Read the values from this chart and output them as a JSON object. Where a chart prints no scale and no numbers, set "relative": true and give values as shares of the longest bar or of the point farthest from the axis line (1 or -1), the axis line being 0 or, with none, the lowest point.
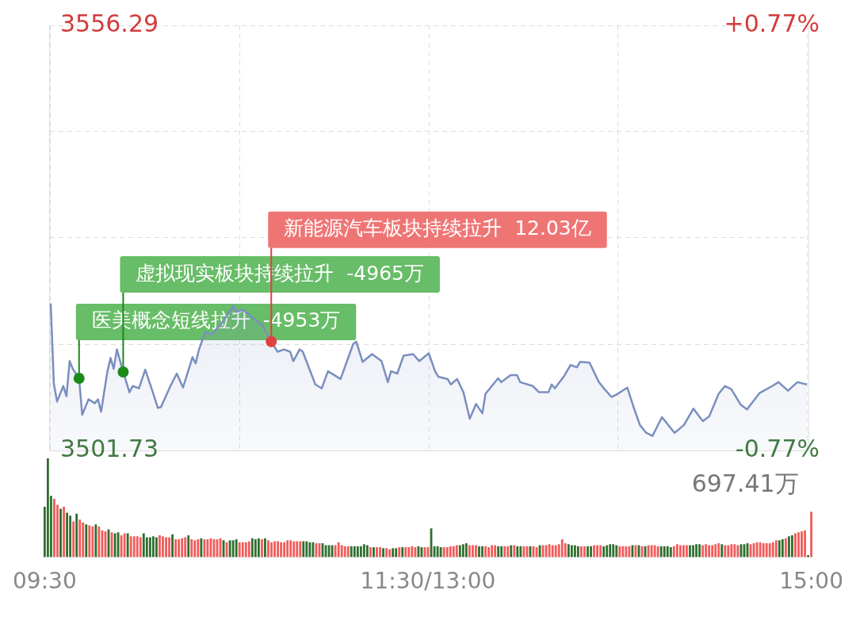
{
  "chart_data": [
    {
      "type": "area",
      "ylim": [
        3501.73,
        3556.29
      ],
      "y2lim": [
        -0.77,
        0.77
      ],
      "grid": true,
      "legend": false,
      "tick_labels": "y",
      "marker": "none",
      "yticks": [
        3556.29,
        {
          "value": 3542.65,
          "label": null
        },
        {
          "value": 3529.01,
          "label": null
        },
        {
          "value": 3515.37,
          "label": null
        },
        3501.73
      ],
      "y2ticks": [
        {
          "value": 0.77,
          "label": "+0.77%"
        },
        {
          "value": -0.77,
          "label": "-0.77%"
        }
      ],
      "series": [
        {
          "color": "#7a8fbf",
          "values": [
            3520.6,
            3510.3,
            3508.0,
            null,
            3510.0,
            3508.7,
            3513.2,
            3512.2,
            null,
            3511.0,
            3506.3,
            null,
            3508.3,
            null,
            3507.8,
            3508.3,
            3506.7,
            null,
            3511.9,
            3513.6,
            3512.2,
            3514.7,
            null,
            3511.8,
            null,
            3509.2,
            3510.0,
            null,
            3509.7,
            null,
            3512.1,
            null,
            3509.7,
            null,
            3507.2,
            3507.3,
            null,
            null,
            3510.0,
            null,
            3511.6,
            null,
            3509.8,
            null,
            null,
            3513.7,
            3512.9,
            3514.6,
            null,
            3516.9,
            null,
            3516.6,
            null,
            null,
            3517.9,
            null,
            null,
            null,
            3520.3,
            3519.5,
            null,
            3519.8,
            null,
            null,
            3518.8,
            null,
            null,
            3517.9,
            null,
            null,
            3515.7,
            null,
            3514.4,
            null,
            3514.7,
            null,
            3514.4,
            3513.2,
            null,
            3514.7,
            3514.4,
            null,
            null,
            null,
            3510.2,
            null,
            3509.7,
            null,
            3511.9,
            null,
            null,
            null,
            3510.9,
            null,
            null,
            null,
            3515.4,
            3515.7,
            null,
            3513.1,
            null,
            null,
            3514.1,
            null,
            null,
            3513.2,
            null,
            3510.5,
            3511.9,
            null,
            3511.6,
            null,
            3513.9,
            null,
            null,
            3514.1,
            null,
            3513.2,
            null,
            null,
            3514.2,
            null,
            3511.9,
            3511.2,
            null,
            null,
            3510.9,
            3510.2,
            null,
            3510.9,
            null,
            3509.2,
            null,
            3505.8,
            null,
            3507.7,
            null,
            3506.5,
            3509.0,
            null,
            null,
            null,
            3511.0,
            3510.5,
            null,
            null,
            3511.4,
            null,
            3511.4,
            3510.5,
            null,
            null,
            null,
            3510.0,
            null,
            3509.2,
            null,
            null,
            3509.2,
            3510.2,
            3509.7,
            null,
            null,
            3511.3,
            null,
            3512.7,
            null,
            3512.4,
            3513.1,
            null,
            null,
            3513.0,
            null,
            null,
            3510.5,
            null,
            3509.5,
            null,
            3508.6,
            null,
            3509.0,
            null,
            null,
            3509.8,
            null,
            3507.3,
            null,
            3505.0,
            null,
            3504.0,
            null,
            3503.6,
            null,
            null,
            3506.0,
            null,
            null,
            null,
            3504.0,
            null,
            null,
            3505.0,
            null,
            null,
            3507.1,
            null,
            3506.0,
            3505.5,
            null,
            3506.1,
            null,
            null,
            3509.0,
            null,
            3510.0,
            null,
            3509.6,
            null,
            null,
            3507.6,
            null,
            3507.0,
            null,
            null,
            null,
            3509.1,
            null,
            null,
            null,
            3510.0,
            null,
            3510.5,
            null,
            null,
            3509.4,
            null,
            null,
            3510.5,
            null,
            null,
            3510.2
          ]
        }
      ],
      "annotations": [
        "医美概念短线拉升  -4953万",
        "虚拟现实板块持续拉升  -4965万",
        "新能源汽车板块持续拉升  12.03亿"
      ]
    },
    {
      "type": "bar",
      "relative": true,
      "grid": false,
      "legend": false,
      "tick_labels": "x",
      "categories": [
        "09:30",
        null,
        null,
        null,
        null,
        null,
        null,
        null,
        null,
        null,
        null,
        null,
        null,
        null,
        null,
        null,
        null,
        null,
        null,
        null,
        null,
        null,
        null,
        null,
        null,
        null,
        null,
        null,
        null,
        null,
        null,
        null,
        null,
        null,
        null,
        null,
        null,
        null,
        null,
        null,
        null,
        null,
        null,
        null,
        null,
        null,
        null,
        null,
        null,
        null,
        null,
        null,
        null,
        null,
        null,
        null,
        null,
        null,
        null,
        null,
        null,
        null,
        null,
        null,
        null,
        null,
        null,
        null,
        null,
        null,
        null,
        null,
        null,
        null,
        null,
        null,
        null,
        null,
        null,
        null,
        null,
        null,
        null,
        null,
        null,
        null,
        null,
        null,
        null,
        null,
        null,
        null,
        null,
        null,
        null,
        null,
        null,
        null,
        null,
        null,
        null,
        null,
        null,
        null,
        null,
        null,
        null,
        null,
        null,
        null,
        null,
        null,
        null,
        null,
        null,
        null,
        null,
        null,
        null,
        null,
        "11:30/13:00",
        null,
        null,
        null,
        null,
        null,
        null,
        null,
        null,
        null,
        null,
        null,
        null,
        null,
        null,
        null,
        null,
        null,
        null,
        null,
        null,
        null,
        null,
        null,
        null,
        null,
        null,
        null,
        null,
        null,
        null,
        null,
        null,
        null,
        null,
        null,
        null,
        null,
        null,
        null,
        null,
        null,
        null,
        null,
        null,
        null,
        null,
        null,
        null,
        null,
        null,
        null,
        null,
        null,
        null,
        null,
        null,
        null,
        null,
        null,
        null,
        null,
        null,
        null,
        null,
        null,
        null,
        null,
        null,
        null,
        null,
        null,
        null,
        null,
        null,
        null,
        null,
        null,
        null,
        null,
        null,
        null,
        null,
        null,
        null,
        null,
        null,
        null,
        null,
        null,
        null,
        null,
        null,
        null,
        null,
        null,
        null,
        null,
        null,
        null,
        null,
        null,
        null,
        null,
        null,
        null,
        null,
        null,
        null,
        null,
        null,
        null,
        null,
        null,
        null,
        null,
        null,
        null,
        null,
        null,
        "15:00"
      ],
      "annotations": [
        "697.41万"
      ],
      "values": [
        0.51,
        1.0,
        0.62,
        0.59,
        0.53,
        0.49,
        0.51,
        0.45,
        0.42,
        0.36,
        0.44,
        0.38,
        0.35,
        0.33,
        0.32,
        0.31,
        0.33,
        0.31,
        0.27,
        0.26,
        0.28,
        0.25,
        0.24,
        0.25,
        0.22,
        0.24,
        0.24,
        0.21,
        0.21,
        0.21,
        0.2,
        0.24,
        0.2,
        0.2,
        0.21,
        0.2,
        0.22,
        0.21,
        0.2,
        0.2,
        0.23,
        0.18,
        0.18,
        0.19,
        0.2,
        0.22,
        0.18,
        0.17,
        0.18,
        0.19,
        0.18,
        0.18,
        0.19,
        0.18,
        0.18,
        0.19,
        0.17,
        0.15,
        0.17,
        0.17,
        0.18,
        0.15,
        0.15,
        0.15,
        0.16,
        0.19,
        0.18,
        0.19,
        0.18,
        0.19,
        0.17,
        0.15,
        0.16,
        0.16,
        0.15,
        0.15,
        0.17,
        0.17,
        0.16,
        0.16,
        0.16,
        0.16,
        0.16,
        0.15,
        0.15,
        0.14,
        0.14,
        0.14,
        0.12,
        0.12,
        0.12,
        0.12,
        0.15,
        0.12,
        0.11,
        0.11,
        0.11,
        0.11,
        0.11,
        0.11,
        0.13,
        0.12,
        0.1,
        0.1,
        0.1,
        0.1,
        0.09,
        0.09,
        0.08,
        0.09,
        0.09,
        0.1,
        0.1,
        0.1,
        0.1,
        0.11,
        0.1,
        0.11,
        0.1,
        0.1,
        0.1,
        0.29,
        0.11,
        0.11,
        0.1,
        0.1,
        0.1,
        0.11,
        0.11,
        0.12,
        0.12,
        0.13,
        0.14,
        0.12,
        0.12,
        0.12,
        0.11,
        0.11,
        0.11,
        0.1,
        0.12,
        0.12,
        0.11,
        0.11,
        0.11,
        0.11,
        0.12,
        0.12,
        0.11,
        0.11,
        0.11,
        0.11,
        0.11,
        0.11,
        0.1,
        0.12,
        0.12,
        0.12,
        0.13,
        0.12,
        0.12,
        0.13,
        0.18,
        0.14,
        0.13,
        0.12,
        0.12,
        0.11,
        0.11,
        0.11,
        0.11,
        0.11,
        0.12,
        0.12,
        0.12,
        0.11,
        0.12,
        0.13,
        0.13,
        0.12,
        0.11,
        0.11,
        0.11,
        0.11,
        0.12,
        0.12,
        0.12,
        0.11,
        0.11,
        0.12,
        0.12,
        0.12,
        0.11,
        0.11,
        0.11,
        0.11,
        0.1,
        0.11,
        0.13,
        0.12,
        0.12,
        0.12,
        0.12,
        0.12,
        0.13,
        0.13,
        0.12,
        0.13,
        0.12,
        0.12,
        0.13,
        0.14,
        0.13,
        0.12,
        0.12,
        0.13,
        0.13,
        0.12,
        0.13,
        0.13,
        0.14,
        0.13,
        0.14,
        0.15,
        0.15,
        0.14,
        0.14,
        0.14,
        0.15,
        0.17,
        0.17,
        0.18,
        0.19,
        0.21,
        0.22,
        0.24,
        0.25,
        0.26,
        0.27,
        0.02,
        0.46
      ],
      "colors": [
        "#2f6f2f",
        "#2f6f2f",
        "#2f6f2f",
        "#f25b5b",
        "#f25b5b",
        "#2f6f2f",
        "#f25b5b",
        "#2f6f2f",
        "#2f6f2f",
        "#f25b5b",
        "#2f6f2f",
        "#f25b5b",
        "#f25b5b",
        "#2f6f2f",
        "#f25b5b",
        "#f25b5b",
        "#2f6f2f",
        "#f25b5b",
        "#f25b5b",
        "#f25b5b",
        "#2f6f2f",
        "#f25b5b",
        "#2f6f2f",
        "#2f6f2f",
        "#f25b5b",
        "#f25b5b",
        "#2f6f2f",
        "#f25b5b",
        "#f25b5b",
        "#f25b5b",
        "#f25b5b",
        "#2f6f2f",
        "#2f6f2f",
        "#2f6f2f",
        "#2f6f2f",
        "#2f6f2f",
        "#f25b5b",
        "#f25b5b",
        "#f25b5b",
        "#f25b5b",
        "#2f6f2f",
        "#f25b5b",
        "#f25b5b",
        "#f25b5b",
        "#f25b5b",
        "#2f6f2f",
        "#f25b5b",
        "#f25b5b",
        "#f25b5b",
        "#2f6f2f",
        "#f25b5b",
        "#f25b5b",
        "#f25b5b",
        "#f25b5b",
        "#f25b5b",
        "#f25b5b",
        "#2f6f2f",
        "#f25b5b",
        "#2f6f2f",
        "#2f6f2f",
        "#2f6f2f",
        "#f25b5b",
        "#f25b5b",
        "#f25b5b",
        "#f25b5b",
        "#2f6f2f",
        "#2f6f2f",
        "#2f6f2f",
        "#f25b5b",
        "#2f6f2f",
        "#f25b5b",
        "#f25b5b",
        "#f25b5b",
        "#f25b5b",
        "#f25b5b",
        "#f25b5b",
        "#f25b5b",
        "#f25b5b",
        "#f25b5b",
        "#f25b5b",
        "#f25b5b",
        "#2f6f2f",
        "#2f6f2f",
        "#2f6f2f",
        "#2f6f2f",
        "#f25b5b",
        "#f25b5b",
        "#2f6f2f",
        "#2f6f2f",
        "#2f6f2f",
        "#2f6f2f",
        "#f25b5b",
        "#f25b5b",
        "#f25b5b",
        "#f25b5b",
        "#f25b5b",
        "#2f6f2f",
        "#2f6f2f",
        "#2f6f2f",
        "#2f6f2f",
        "#2f6f2f",
        "#2f6f2f",
        "#f25b5b",
        "#2f6f2f",
        "#f25b5b",
        "#f25b5b",
        "#2f6f2f",
        "#f25b5b",
        "#f25b5b",
        "#2f6f2f",
        "#2f6f2f",
        "#f25b5b",
        "#2f6f2f",
        "#f25b5b",
        "#f25b5b",
        "#f25b5b",
        "#f25b5b",
        "#2f6f2f",
        "#2f6f2f",
        "#f25b5b",
        "#f25b5b",
        "#2f6f2f",
        "#2f6f2f",
        "#2f6f2f",
        "#2f6f2f",
        "#f25b5b",
        "#f25b5b",
        "#f25b5b",
        "#f25b5b",
        "#f25b5b",
        "#2f6f2f",
        "#2f6f2f",
        "#2f6f2f",
        "#f25b5b",
        "#f25b5b",
        "#f25b5b",
        "#2f6f2f",
        "#2f6f2f",
        "#f25b5b",
        "#f25b5b",
        "#f25b5b",
        "#f25b5b",
        "#2f6f2f",
        "#2f6f2f",
        "#f25b5b",
        "#f25b5b",
        "#2f6f2f",
        "#f25b5b",
        "#2f6f2f",
        "#2f6f2f",
        "#f25b5b",
        "#f25b5b",
        "#2f6f2f",
        "#f25b5b",
        "#f25b5b",
        "#2f6f2f",
        "#f25b5b",
        "#f25b5b",
        "#f25b5b",
        "#f25b5b",
        "#f25b5b",
        "#f25b5b",
        "#f25b5b",
        "#f25b5b",
        "#2f6f2f",
        "#2f6f2f",
        "#2f6f2f",
        "#2f6f2f",
        "#f25b5b",
        "#f25b5b",
        "#2f6f2f",
        "#2f6f2f",
        "#f25b5b",
        "#f25b5b",
        "#f25b5b",
        "#2f6f2f",
        "#2f6f2f",
        "#2f6f2f",
        "#2f6f2f",
        "#2f6f2f",
        "#f25b5b",
        "#f25b5b",
        "#f25b5b",
        "#f25b5b",
        "#2f6f2f",
        "#f25b5b",
        "#2f6f2f",
        "#f25b5b",
        "#2f6f2f",
        "#f25b5b",
        "#f25b5b",
        "#f25b5b",
        "#f25b5b",
        "#2f6f2f",
        "#2f6f2f",
        "#2f6f2f",
        "#2f6f2f",
        "#f25b5b",
        "#f25b5b",
        "#f25b5b",
        "#f25b5b",
        "#f25b5b",
        "#2f6f2f",
        "#2f6f2f",
        "#2f6f2f",
        "#2f6f2f",
        "#f25b5b",
        "#f25b5b",
        "#f25b5b",
        "#f25b5b",
        "#f25b5b",
        "#f25b5b",
        "#2f6f2f",
        "#f25b5b",
        "#f25b5b",
        "#f25b5b",
        "#f25b5b",
        "#f25b5b",
        "#2f6f2f",
        "#2f6f2f",
        "#2f6f2f",
        "#f25b5b",
        "#f25b5b",
        "#f25b5b",
        "#f25b5b",
        "#f25b5b",
        "#f25b5b",
        "#f25b5b",
        "#f25b5b",
        "#f25b5b",
        "#2f6f2f",
        "#2f6f2f",
        "#f25b5b",
        "#2f6f2f",
        "#2f6f2f",
        "#f25b5b",
        "#f25b5b",
        "#f25b5b",
        "#f25b5b",
        "#2f6f2f",
        "#f25b5b"
      ]
    }
  ]
}
